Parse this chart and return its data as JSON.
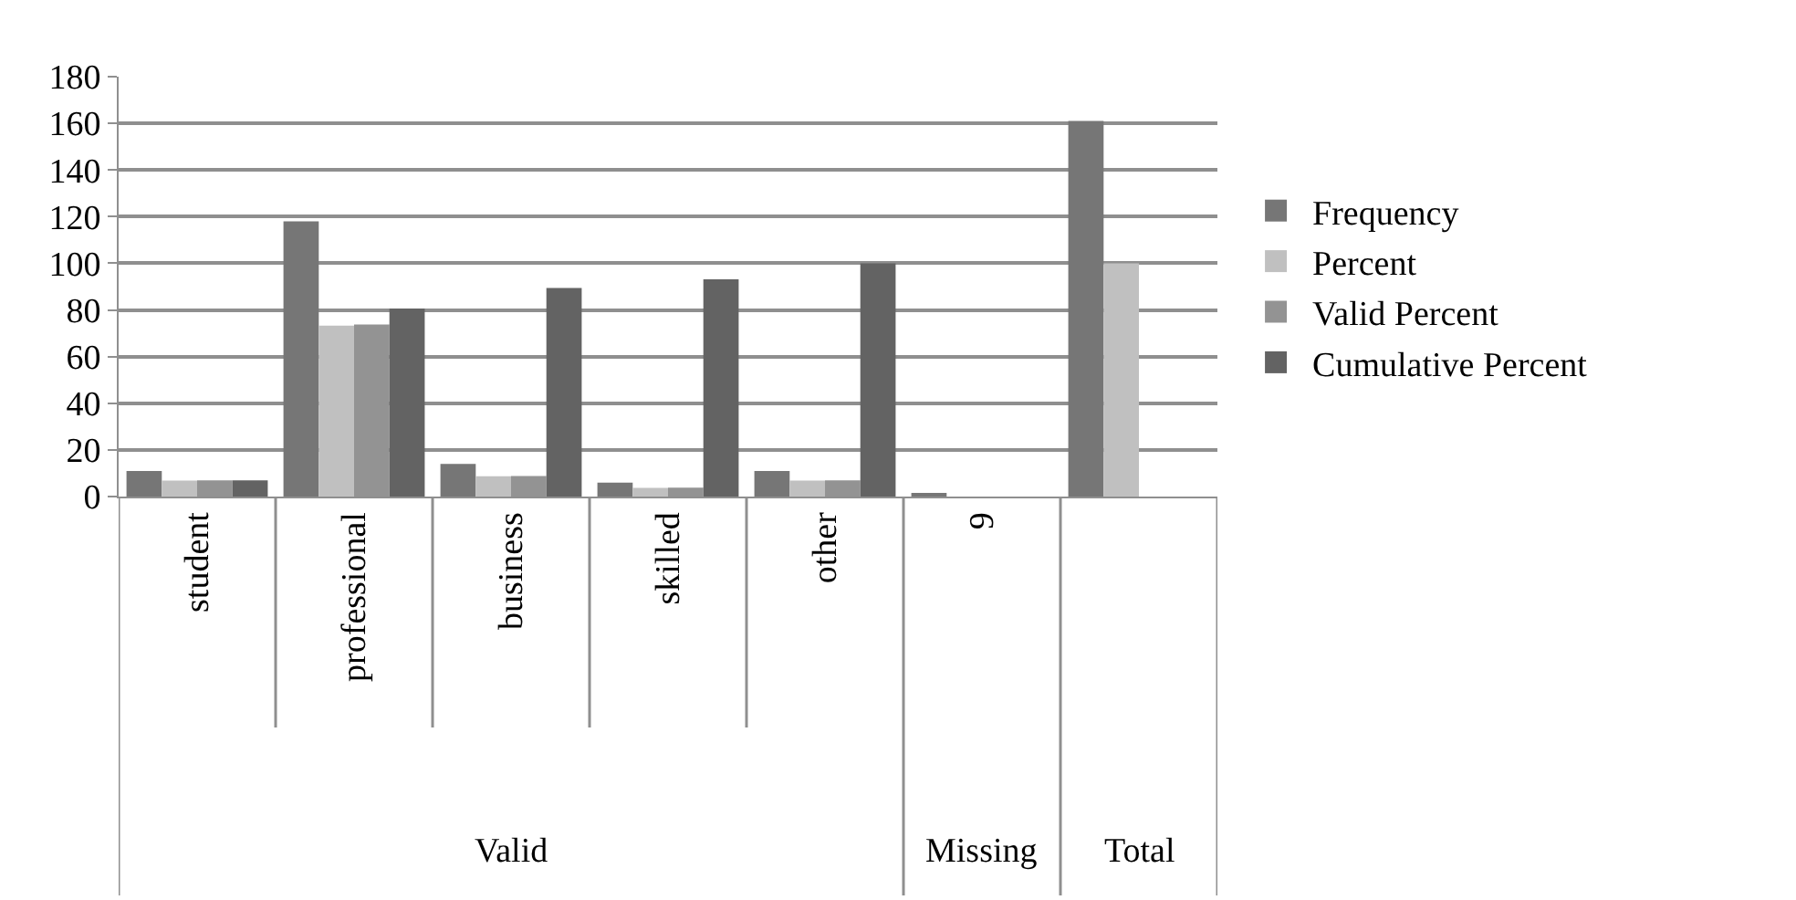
{
  "chart_data": {
    "type": "bar",
    "categories": [
      "student",
      "professional",
      "business",
      "skilled",
      "other",
      "9",
      null
    ],
    "series": [
      {
        "name": "Frequency",
        "color": "#767676",
        "values": [
          11,
          118,
          14,
          6,
          11,
          1,
          161
        ]
      },
      {
        "name": "Percent",
        "color": "#c0c0c0",
        "values": [
          6.8,
          73.3,
          8.7,
          3.7,
          6.8,
          null,
          100
        ]
      },
      {
        "name": "Valid Percent",
        "color": "#939393",
        "values": [
          6.9,
          73.8,
          8.8,
          3.8,
          6.9,
          null,
          null
        ]
      },
      {
        "name": "Cumulative Percent",
        "color": "#636363",
        "values": [
          6.9,
          80.6,
          89.4,
          93.1,
          100,
          null,
          null
        ]
      }
    ],
    "ylim": [
      0,
      180
    ],
    "yticks": [
      0,
      20,
      40,
      60,
      80,
      100,
      120,
      140,
      160,
      180
    ],
    "grid": "y",
    "legend": "right",
    "annotations": [
      "Valid",
      "Missing",
      "Total"
    ]
  }
}
